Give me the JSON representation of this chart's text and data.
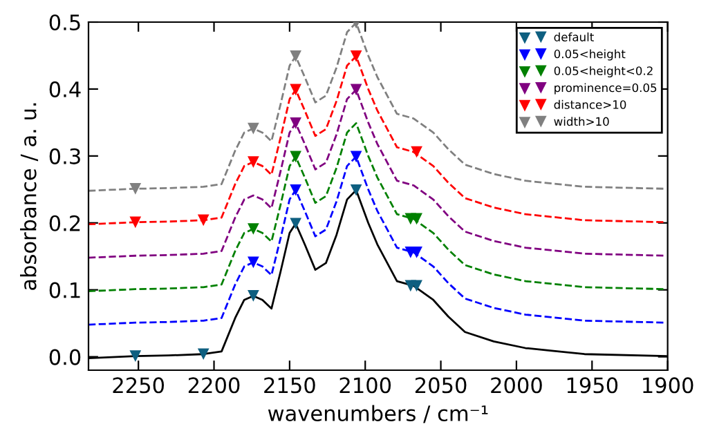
{
  "chart_data": {
    "type": "line",
    "xlabel": "wavenumbers / cm⁻¹",
    "ylabel": "absorbance / a. u.",
    "xlim": [
      2283,
      1900
    ],
    "xticks": [
      2250,
      2200,
      2150,
      2100,
      2050,
      2000,
      1950,
      1900
    ],
    "ylim": [
      -0.02,
      0.5
    ],
    "yticks": [
      {
        "value": 0,
        "label": "0.0"
      },
      {
        "value": 0.1,
        "label": "0.1"
      },
      {
        "value": 0.2,
        "label": "0.2"
      },
      {
        "value": 0.3,
        "label": "0.3"
      },
      {
        "value": 0.4,
        "label": "0.4"
      },
      {
        "value": 0.5,
        "label": "0.5"
      }
    ],
    "grid": false,
    "legend": "top right",
    "x": [
      2283,
      2252,
      2230,
      2207,
      2195,
      2186,
      2180,
      2174,
      2168,
      2162,
      2156,
      2150,
      2146,
      2140,
      2133,
      2126,
      2119,
      2112,
      2106,
      2098,
      2092,
      2079,
      2068,
      2055,
      2045,
      2034,
      2015,
      1994,
      1955,
      1901
    ],
    "series": [
      {
        "color": "#000000",
        "line_style": "solid",
        "values": [
          -0.002,
          0.001,
          0.002,
          0.004,
          0.008,
          0.058,
          0.085,
          0.091,
          0.085,
          0.072,
          0.127,
          0.185,
          0.199,
          0.168,
          0.13,
          0.14,
          0.182,
          0.235,
          0.249,
          0.2,
          0.168,
          0.113,
          0.106,
          0.085,
          0.06,
          0.037,
          0.023,
          0.013,
          0.004,
          0.001
        ]
      },
      {
        "color": "#0000ff",
        "line_style": "dashed",
        "values": [
          0.048,
          0.051,
          0.052,
          0.054,
          0.058,
          0.108,
          0.135,
          0.141,
          0.135,
          0.122,
          0.177,
          0.235,
          0.249,
          0.218,
          0.18,
          0.19,
          0.232,
          0.285,
          0.299,
          0.25,
          0.218,
          0.163,
          0.156,
          0.135,
          0.11,
          0.087,
          0.073,
          0.063,
          0.054,
          0.051
        ]
      },
      {
        "color": "#008000",
        "line_style": "dashed",
        "values": [
          0.098,
          0.101,
          0.102,
          0.104,
          0.108,
          0.158,
          0.185,
          0.191,
          0.185,
          0.172,
          0.227,
          0.285,
          0.299,
          0.268,
          0.23,
          0.24,
          0.282,
          0.335,
          0.349,
          0.3,
          0.268,
          0.213,
          0.206,
          0.185,
          0.16,
          0.137,
          0.123,
          0.113,
          0.104,
          0.101
        ]
      },
      {
        "color": "#800080",
        "line_style": "dashed",
        "values": [
          0.148,
          0.151,
          0.152,
          0.154,
          0.158,
          0.208,
          0.235,
          0.241,
          0.235,
          0.222,
          0.277,
          0.335,
          0.349,
          0.318,
          0.28,
          0.29,
          0.332,
          0.385,
          0.399,
          0.35,
          0.318,
          0.263,
          0.256,
          0.235,
          0.21,
          0.187,
          0.173,
          0.163,
          0.154,
          0.151
        ]
      },
      {
        "color": "#ff0000",
        "line_style": "dashed",
        "values": [
          0.198,
          0.201,
          0.202,
          0.204,
          0.208,
          0.258,
          0.285,
          0.291,
          0.285,
          0.272,
          0.327,
          0.385,
          0.399,
          0.368,
          0.33,
          0.34,
          0.382,
          0.435,
          0.449,
          0.4,
          0.368,
          0.313,
          0.306,
          0.285,
          0.26,
          0.237,
          0.223,
          0.213,
          0.204,
          0.201
        ]
      },
      {
        "color": "#808080",
        "line_style": "dashed",
        "values": [
          0.248,
          0.251,
          0.252,
          0.254,
          0.258,
          0.308,
          0.335,
          0.341,
          0.335,
          0.322,
          0.377,
          0.435,
          0.449,
          0.418,
          0.38,
          0.39,
          0.432,
          0.485,
          0.499,
          0.45,
          0.418,
          0.363,
          0.356,
          0.335,
          0.31,
          0.287,
          0.273,
          0.263,
          0.254,
          0.251
        ]
      },
      {
        "type": "scatter",
        "name": "default",
        "color": "#0e5f80",
        "marker": "triangle",
        "x": [
          2252,
          2207,
          2174,
          2146,
          2106,
          2070,
          2066
        ],
        "values": [
          0.001,
          0.004,
          0.091,
          0.199,
          0.249,
          0.106,
          0.106
        ]
      },
      {
        "type": "scatter",
        "name": "0.05<height",
        "color": "#0000ff",
        "marker": "triangle",
        "x": [
          2174,
          2146,
          2106,
          2070,
          2066
        ],
        "values": [
          0.141,
          0.249,
          0.299,
          0.156,
          0.156
        ]
      },
      {
        "type": "scatter",
        "name": "0.05<height<0.2",
        "color": "#008000",
        "marker": "triangle",
        "x": [
          2174,
          2146,
          2070,
          2066
        ],
        "values": [
          0.191,
          0.299,
          0.206,
          0.206
        ]
      },
      {
        "type": "scatter",
        "name": "prominence=0.05",
        "color": "#800080",
        "marker": "triangle",
        "x": [
          2146,
          2106
        ],
        "values": [
          0.349,
          0.399
        ]
      },
      {
        "type": "scatter",
        "name": "distance>10",
        "color": "#ff0000",
        "marker": "triangle",
        "x": [
          2252,
          2207,
          2174,
          2146,
          2106,
          2066
        ],
        "values": [
          0.201,
          0.204,
          0.291,
          0.399,
          0.449,
          0.306
        ]
      },
      {
        "type": "scatter",
        "name": "width>10",
        "color": "#808080",
        "marker": "triangle",
        "x": [
          2252,
          2174,
          2146,
          2106
        ],
        "values": [
          0.251,
          0.341,
          0.449,
          0.499
        ]
      }
    ]
  }
}
